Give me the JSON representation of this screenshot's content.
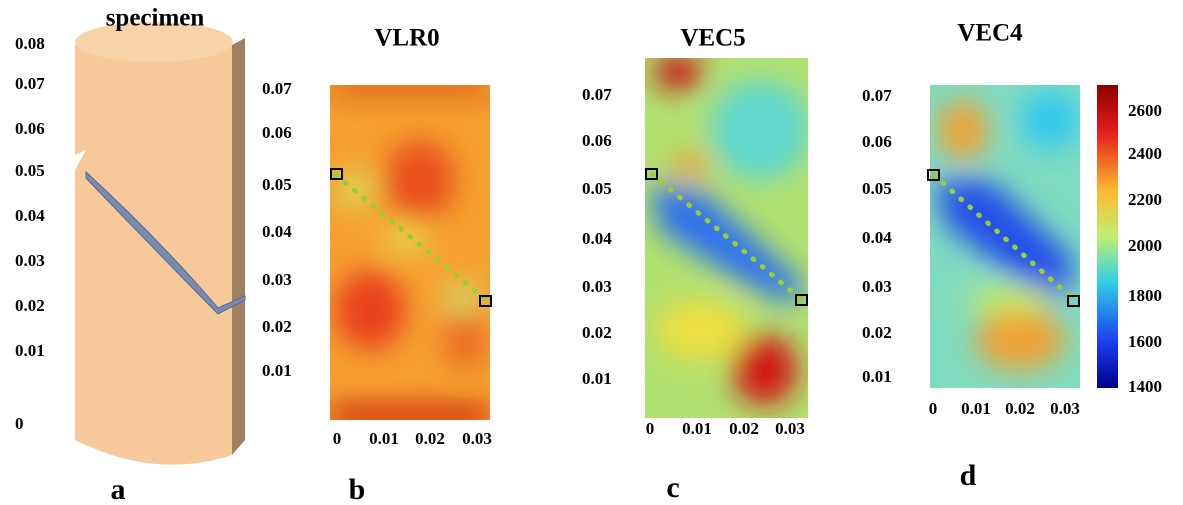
{
  "panels": [
    {
      "label": "a",
      "title": "specimen",
      "yticks": [
        "0.08",
        "0.07",
        "0.06",
        "0.05",
        "0.04",
        "0.03",
        "0.02",
        "0.01",
        "0"
      ]
    },
    {
      "label": "b",
      "title": "VLR0",
      "yticks": [
        "0.07",
        "0.06",
        "0.05",
        "0.04",
        "0.03",
        "0.02",
        "0.01"
      ],
      "xticks": [
        "0",
        "0.01",
        "0.02",
        "0.03"
      ]
    },
    {
      "label": "c",
      "title": "VEC5",
      "yticks": [
        "0.07",
        "0.06",
        "0.05",
        "0.04",
        "0.03",
        "0.02",
        "0.01"
      ],
      "xticks": [
        "0",
        "0.01",
        "0.02",
        "0.03"
      ]
    },
    {
      "label": "d",
      "title": "VEC4",
      "yticks": [
        "0.07",
        "0.06",
        "0.05",
        "0.04",
        "0.03",
        "0.02",
        "0.01"
      ],
      "xticks": [
        "0",
        "0.01",
        "0.02",
        "0.03"
      ]
    }
  ],
  "colorbar": {
    "ticks": [
      "2600",
      "2400",
      "2200",
      "2000",
      "1800",
      "1600",
      "1400"
    ]
  }
}
